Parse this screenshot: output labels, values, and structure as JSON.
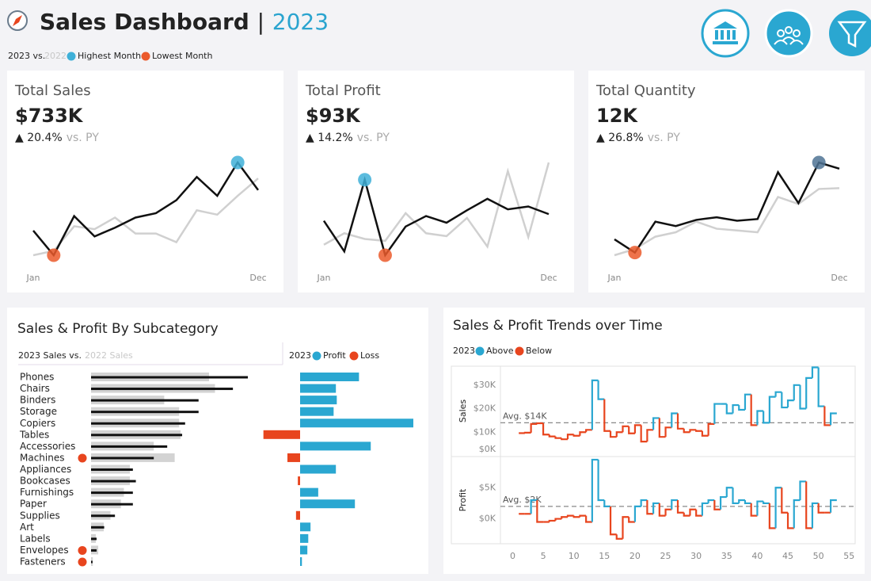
{
  "header": {
    "title": "Sales Dashboard",
    "separator": "|",
    "year": "2023",
    "legend": {
      "current": "2023 vs.",
      "previous": "2022",
      "highest": "Highest Month",
      "lowest": "Lowest Month"
    }
  },
  "chart_data": [
    {
      "type": "kpi-line",
      "title": "Total Sales",
      "value": "$733K",
      "change": "▲ 20.4%",
      "comparison": "vs. PY",
      "categories": [
        "Jan",
        null,
        null,
        null,
        null,
        null,
        null,
        null,
        null,
        null,
        null,
        "Dec"
      ],
      "series": [
        {
          "color": "#111111",
          "values": [
            44,
            27,
            54,
            40,
            46,
            53,
            56,
            65,
            81,
            68,
            91,
            72
          ]
        },
        {
          "color": "#d0d0d0",
          "values": [
            27,
            30,
            47,
            45,
            53,
            42,
            42,
            36,
            58,
            55,
            68,
            80
          ]
        }
      ],
      "highest_color": "#3fb0d8",
      "lowest_color": "#eb5a2c"
    },
    {
      "type": "kpi-line",
      "title": "Total Profit",
      "value": "$93K",
      "change": "▲ 14.2%",
      "comparison": "vs. PY",
      "categories": [
        "Jan",
        null,
        null,
        null,
        null,
        null,
        null,
        null,
        null,
        null,
        null,
        "Dec"
      ],
      "series": [
        {
          "color": "#111111",
          "values": [
            7.5,
            4.3,
            11.8,
            3.9,
            6.9,
            8.0,
            7.3,
            8.6,
            9.8,
            8.7,
            9.0,
            8.2
          ]
        },
        {
          "color": "#d0d0d0",
          "values": [
            5.0,
            6.2,
            5.6,
            5.4,
            8.3,
            6.2,
            5.9,
            7.8,
            4.8,
            12.7,
            5.8,
            13.6
          ]
        }
      ],
      "highest_color": "#3fb0d8",
      "lowest_color": "#eb5a2c"
    },
    {
      "type": "kpi-line",
      "title": "Total Quantity",
      "value": "12K",
      "change": "▲ 26.8%",
      "comparison": "vs. PY",
      "categories": [
        "Jan",
        null,
        null,
        null,
        null,
        null,
        null,
        null,
        null,
        null,
        null,
        "Dec"
      ],
      "series": [
        {
          "color": "#111111",
          "values": [
            800,
            680,
            960,
            920,
            976,
            1000,
            968,
            984,
            1408,
            1128,
            1496,
            1440
          ]
        },
        {
          "color": "#d0d0d0",
          "values": [
            656,
            712,
            824,
            864,
            960,
            896,
            880,
            864,
            1184,
            1120,
            1256,
            1264
          ]
        }
      ],
      "highest_color": "#4f7394",
      "lowest_color": "#eb5a2c"
    },
    {
      "type": "subcategory-bars",
      "title": "Sales & Profit By Subcategory",
      "sales_heading": {
        "current": "2023 Sales vs.",
        "previous": "2022 Sales"
      },
      "profit_heading": {
        "year": "2023",
        "profit": "Profit",
        "loss": "Loss"
      },
      "categories": [
        "Phones",
        "Chairs",
        "Binders",
        "Storage",
        "Copiers",
        "Tables",
        "Accessories",
        "Machines",
        "Appliances",
        "Bookcases",
        "Furnishings",
        "Paper",
        "Supplies",
        "Art",
        "Labels",
        "Envelopes",
        "Fasteners"
      ],
      "sales_2023": {
        "color": "#111111",
        "values": [
          105,
          95,
          72,
          72,
          63,
          61,
          51,
          42,
          28,
          30,
          28,
          28,
          16,
          8.8,
          3.7,
          3.7,
          1.0
        ]
      },
      "sales_2022": {
        "color": "#d3d3d3",
        "values": [
          79,
          83,
          49,
          59,
          59,
          60,
          42,
          56,
          26,
          26,
          22,
          20,
          13,
          8.5,
          3.2,
          4.8,
          1.2
        ]
      },
      "profit": {
        "color": "#2aa7d1",
        "loss_color": "#e8451e",
        "values": [
          13.0,
          7.9,
          8.1,
          7.4,
          25.0,
          -8.1,
          15.6,
          -2.8,
          7.9,
          -0.5,
          4.0,
          12.1,
          -0.9,
          2.3,
          1.8,
          1.6,
          0.4
        ]
      }
    },
    {
      "type": "step-panels",
      "title": "Sales & Profit Trends over Time",
      "legend": {
        "year": "2023",
        "above": "Above",
        "below": "Below"
      },
      "colors": {
        "above": "#2aa7d1",
        "below": "#e8451e"
      },
      "xlim": [
        -2,
        56
      ],
      "xticks": [
        0,
        5,
        10,
        15,
        20,
        25,
        30,
        35,
        40,
        45,
        50,
        55
      ],
      "x": [
        1,
        2,
        3,
        4,
        5,
        6,
        7,
        8,
        9,
        10,
        11,
        12,
        13,
        14,
        15,
        16,
        17,
        18,
        19,
        20,
        21,
        22,
        23,
        24,
        25,
        26,
        27,
        28,
        29,
        30,
        31,
        32,
        33,
        34,
        35,
        36,
        37,
        38,
        39,
        40,
        41,
        42,
        43,
        44,
        45,
        46,
        47,
        48,
        49,
        50,
        51,
        52
      ],
      "series": [
        {
          "name": "Sales",
          "ylim": [
            0,
            38
          ],
          "yticks": [
            {
              "value": 0,
              "label": "$0K"
            },
            {
              "value": 10,
              "label": "$10K"
            },
            {
              "value": 20,
              "label": "$20K"
            },
            {
              "value": 30,
              "label": "$30K"
            }
          ],
          "avg": {
            "value": 14,
            "label": "Avg. $14K"
          },
          "values": [
            9.6,
            9.8,
            13.5,
            13.8,
            9.0,
            8.2,
            7.5,
            7.0,
            9.0,
            8.5,
            10.0,
            11.0,
            32.0,
            24.0,
            10.5,
            8.0,
            10.0,
            12.5,
            9.5,
            13.0,
            6.0,
            11.0,
            16.0,
            8.0,
            12.0,
            18.0,
            11.5,
            10.0,
            11.0,
            10.5,
            8.5,
            13.5,
            22.0,
            22.0,
            18.0,
            21.5,
            19.5,
            26.0,
            13.0,
            19.0,
            14.0,
            25.0,
            27.0,
            20.5,
            23.5,
            30.0,
            20.0,
            33.0,
            37.5,
            21.0,
            13.0,
            18.0
          ]
        },
        {
          "name": "Profit",
          "ylim": [
            -4,
            10
          ],
          "yticks": [
            {
              "value": 0,
              "label": "$0K"
            },
            {
              "value": 5,
              "label": "$5K"
            }
          ],
          "avg": {
            "value": 2,
            "label": "Avg. $2K"
          },
          "values": [
            0.8,
            0.8,
            3.0,
            -0.5,
            -0.5,
            -0.3,
            0.0,
            0.3,
            0.5,
            0.3,
            0.5,
            -0.5,
            9.5,
            3.0,
            2.0,
            -2.5,
            -3.2,
            0.3,
            -0.5,
            2.0,
            3.0,
            0.8,
            2.5,
            0.5,
            1.5,
            3.0,
            1.0,
            0.5,
            1.5,
            0.5,
            2.5,
            3.0,
            1.5,
            3.5,
            5.0,
            2.5,
            3.0,
            2.5,
            0.5,
            2.8,
            2.5,
            -1.5,
            5.0,
            1.0,
            -1.5,
            3.0,
            6.0,
            -1.5,
            2.5,
            1.0,
            1.0,
            3.0
          ]
        }
      ]
    }
  ]
}
